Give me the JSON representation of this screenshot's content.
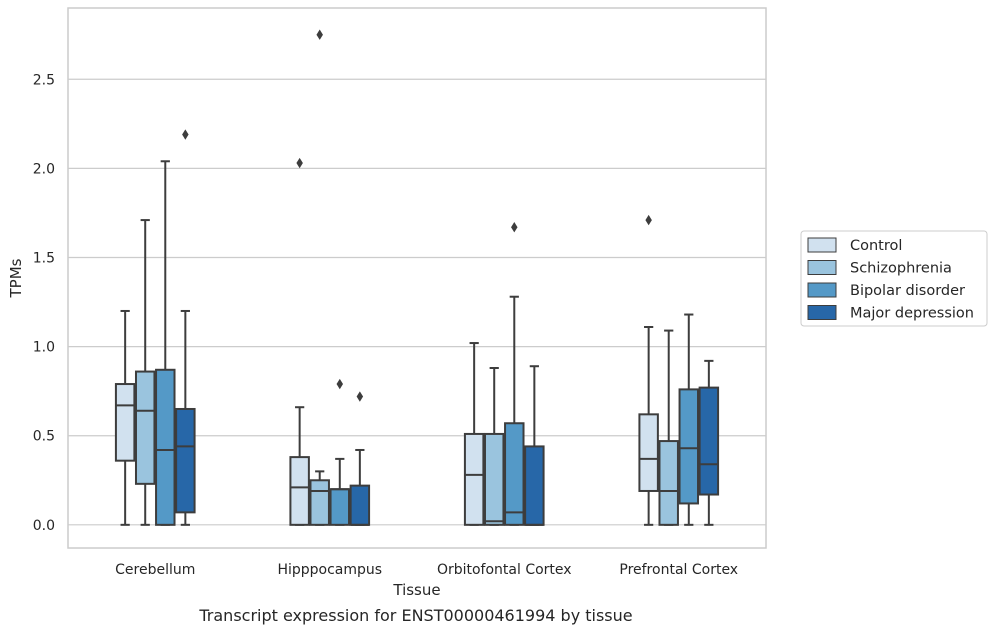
{
  "caption": "Transcript expression for ENST00000461994 by tissue",
  "chart_data": {
    "type": "box",
    "xlabel": "Tissue",
    "ylabel": "TPMs",
    "ylim": [
      -0.13,
      2.9
    ],
    "yticks": [
      0.0,
      0.5,
      1.0,
      1.5,
      2.0,
      2.5
    ],
    "ytick_labels": [
      "0.0",
      "0.5",
      "1.0",
      "1.5",
      "2.0",
      "2.5"
    ],
    "grid": "horizontal",
    "legend_position": "right",
    "categories": [
      "Cerebellum",
      "Hipppocampus",
      "Orbitofontal Cortex",
      "Prefrontal Cortex"
    ],
    "series": [
      {
        "name": "Control",
        "color": "#d1e1ef",
        "boxes": [
          {
            "whislo": 0.0,
            "q1": 0.36,
            "med": 0.67,
            "q3": 0.79,
            "whishi": 1.2,
            "fliers": []
          },
          {
            "whislo": 0.0,
            "q1": 0.0,
            "med": 0.21,
            "q3": 0.38,
            "whishi": 0.66,
            "fliers": [
              2.03
            ]
          },
          {
            "whislo": 0.0,
            "q1": 0.0,
            "med": 0.28,
            "q3": 0.51,
            "whishi": 1.02,
            "fliers": []
          },
          {
            "whislo": 0.0,
            "q1": 0.19,
            "med": 0.37,
            "q3": 0.62,
            "whishi": 1.11,
            "fliers": [
              1.71
            ]
          }
        ]
      },
      {
        "name": "Schizophrenia",
        "color": "#9ac4de",
        "boxes": [
          {
            "whislo": 0.0,
            "q1": 0.23,
            "med": 0.64,
            "q3": 0.86,
            "whishi": 1.71,
            "fliers": []
          },
          {
            "whislo": 0.0,
            "q1": 0.0,
            "med": 0.19,
            "q3": 0.25,
            "whishi": 0.3,
            "fliers": [
              2.75
            ]
          },
          {
            "whislo": 0.0,
            "q1": 0.0,
            "med": 0.02,
            "q3": 0.51,
            "whishi": 0.88,
            "fliers": []
          },
          {
            "whislo": 0.0,
            "q1": 0.0,
            "med": 0.19,
            "q3": 0.47,
            "whishi": 1.09,
            "fliers": []
          }
        ]
      },
      {
        "name": "Bipolar disorder",
        "color": "#5499c7",
        "boxes": [
          {
            "whislo": 0.0,
            "q1": 0.0,
            "med": 0.42,
            "q3": 0.87,
            "whishi": 2.04,
            "fliers": []
          },
          {
            "whislo": 0.0,
            "q1": 0.0,
            "med": 0.2,
            "q3": 0.2,
            "whishi": 0.37,
            "fliers": [
              0.79
            ]
          },
          {
            "whislo": 0.0,
            "q1": 0.0,
            "med": 0.07,
            "q3": 0.57,
            "whishi": 1.28,
            "fliers": [
              1.67
            ]
          },
          {
            "whislo": 0.0,
            "q1": 0.12,
            "med": 0.43,
            "q3": 0.76,
            "whishi": 1.18,
            "fliers": []
          }
        ]
      },
      {
        "name": "Major depression",
        "color": "#2767a8",
        "boxes": [
          {
            "whislo": 0.0,
            "q1": 0.07,
            "med": 0.44,
            "q3": 0.65,
            "whishi": 1.2,
            "fliers": [
              2.19
            ]
          },
          {
            "whislo": 0.0,
            "q1": 0.0,
            "med": 0.0,
            "q3": 0.22,
            "whishi": 0.42,
            "fliers": [
              0.72
            ]
          },
          {
            "whislo": 0.0,
            "q1": 0.0,
            "med": 0.0,
            "q3": 0.44,
            "whishi": 0.89,
            "fliers": []
          },
          {
            "whislo": 0.0,
            "q1": 0.17,
            "med": 0.34,
            "q3": 0.77,
            "whishi": 0.92,
            "fliers": []
          }
        ]
      }
    ]
  }
}
